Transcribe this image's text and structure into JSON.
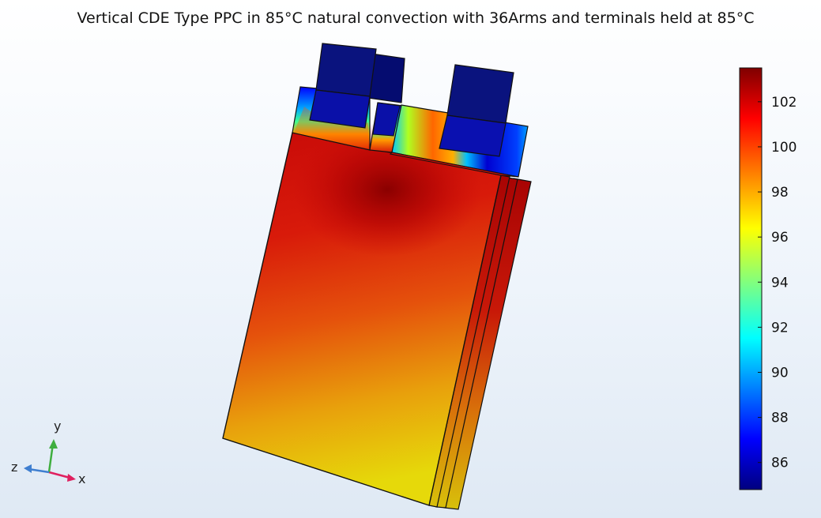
{
  "title": "Vertical CDE Type PPC in 85°C natural convection with 36Arms and terminals held at 85°C",
  "colorbar": {
    "min": 84.8,
    "max": 103.5,
    "ticks": [
      102,
      100,
      98,
      96,
      94,
      92,
      90,
      88,
      86
    ],
    "colormap": [
      "#00007f",
      "#0000ff",
      "#00ffff",
      "#ffff00",
      "#ff0000",
      "#7f0000"
    ]
  },
  "axes_triad": {
    "x_label": "x",
    "y_label": "y",
    "z_label": "z",
    "x_color": "#e0205f",
    "y_color": "#3fae3f",
    "z_color": "#3f7fd0"
  },
  "colors": {
    "terminal": "#0a137e",
    "terminal_dark": "#050c5a",
    "hot": "#a40000",
    "mid": "#e81e0c",
    "cool": "#e6d20a"
  }
}
